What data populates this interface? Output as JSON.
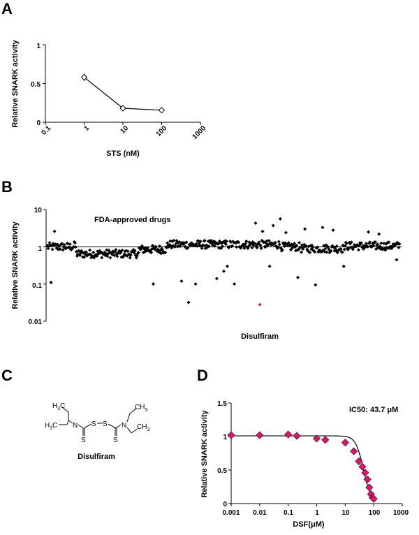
{
  "colors": {
    "axis": "#000000",
    "marker": "#000000",
    "highlight": "#e0156a",
    "nitrogen": "#1f2fa0",
    "sulfur": "#7a7a10",
    "bond": "#000000"
  },
  "chart_data": [
    {
      "panel": "A",
      "type": "line",
      "xscale": "log",
      "xlabel": "STS (nM)",
      "ylabel": "Relative SNARK activity",
      "xlim": [
        0.1,
        1000
      ],
      "ylim": [
        0,
        1
      ],
      "x_tick_labels": [
        "0.1",
        "1",
        "10",
        "100",
        "1000"
      ],
      "y_tick_labels": [
        "0",
        "0.5",
        "1"
      ],
      "series": [
        {
          "name": "STS",
          "x": [
            1,
            10,
            100
          ],
          "y": [
            0.58,
            0.18,
            0.155
          ],
          "yerr": [
            0.05,
            0.01,
            0.01
          ]
        }
      ]
    },
    {
      "panel": "B",
      "type": "scatter",
      "yscale": "log",
      "ylabel": "Relative SNARK activity",
      "ylim": [
        0.01,
        10
      ],
      "y_tick_labels": [
        "0.01",
        "0.1",
        "1",
        "10"
      ],
      "reference_line": 1,
      "annotation": "FDA-approved drugs",
      "n_points": 500,
      "outliers": [
        {
          "index": 5,
          "y": 0.11
        },
        {
          "index": 10,
          "y": 2.6
        },
        {
          "index": 38,
          "y": 1.35
        },
        {
          "index": 150,
          "y": 0.1
        },
        {
          "index": 190,
          "y": 0.12
        },
        {
          "index": 200,
          "y": 0.032
        },
        {
          "index": 210,
          "y": 0.1
        },
        {
          "index": 240,
          "y": 0.14
        },
        {
          "index": 250,
          "y": 0.22
        },
        {
          "index": 255,
          "y": 0.3
        },
        {
          "index": 265,
          "y": 0.1
        },
        {
          "index": 295,
          "y": 4.3
        },
        {
          "index": 305,
          "y": 2.6
        },
        {
          "index": 315,
          "y": 0.3
        },
        {
          "index": 320,
          "y": 3.7
        },
        {
          "index": 330,
          "y": 5.6
        },
        {
          "index": 338,
          "y": 2.4
        },
        {
          "index": 355,
          "y": 0.15
        },
        {
          "index": 365,
          "y": 3.0
        },
        {
          "index": 380,
          "y": 0.095
        },
        {
          "index": 390,
          "y": 3.3
        },
        {
          "index": 405,
          "y": 2.8
        },
        {
          "index": 420,
          "y": 0.3
        },
        {
          "index": 455,
          "y": 2.5
        },
        {
          "index": 470,
          "y": 2.2
        },
        {
          "index": 495,
          "y": 0.45
        }
      ],
      "highlight": {
        "label": "Disulfiram",
        "index": 301,
        "y": 0.028
      }
    },
    {
      "panel": "D",
      "type": "scatter",
      "xscale": "log",
      "xlabel": "DSF(μM)",
      "ylabel": "Relative SNARK activity",
      "xlim": [
        0.001,
        1000
      ],
      "ylim": [
        0,
        1.5
      ],
      "x_tick_labels": [
        "0.001",
        "0.01",
        "0.1",
        "1",
        "10",
        "100",
        "1000"
      ],
      "y_tick_labels": [
        "0",
        "0.5",
        "1",
        "1.5"
      ],
      "annotation": "IC50: 43.7 μM",
      "ic50": 43.7,
      "top": 1.01,
      "hill": 3.2,
      "points": [
        {
          "x": 0.001,
          "y": 1.02,
          "err": 0.03
        },
        {
          "x": 0.01,
          "y": 1.02,
          "err": 0.05
        },
        {
          "x": 0.1,
          "y": 1.03,
          "err": 0.04
        },
        {
          "x": 0.2,
          "y": 1.01,
          "err": 0.04
        },
        {
          "x": 1,
          "y": 0.97,
          "err": 0.02
        },
        {
          "x": 2,
          "y": 0.95,
          "err": 0.02
        },
        {
          "x": 10,
          "y": 0.91,
          "err": 0.04
        },
        {
          "x": 20,
          "y": 0.78,
          "err": 0.05
        },
        {
          "x": 30,
          "y": 0.63,
          "err": 0.05
        },
        {
          "x": 40,
          "y": 0.55,
          "err": 0.04
        },
        {
          "x": 50,
          "y": 0.46,
          "err": 0.05
        },
        {
          "x": 60,
          "y": 0.36,
          "err": 0.05
        },
        {
          "x": 70,
          "y": 0.24,
          "err": 0.05
        },
        {
          "x": 80,
          "y": 0.14,
          "err": 0.04
        },
        {
          "x": 90,
          "y": 0.09,
          "err": 0.03
        },
        {
          "x": 100,
          "y": 0.07,
          "err": 0.03
        }
      ]
    }
  ],
  "panels": {
    "a": "A",
    "b": "B",
    "c": "C",
    "d": "D"
  },
  "molecule": {
    "name": "Disulfiram",
    "left_top_group": "H",
    "left_top_sub": "3",
    "left_top_tail": "C",
    "left_bottom_group": "H",
    "left_bottom_sub": "3",
    "left_bottom_tail": "C",
    "right_top_group": "CH",
    "right_top_sub": "3",
    "right_bottom_group": "CH",
    "right_bottom_sub": "3",
    "n_left": "N",
    "n_right": "N",
    "s_thione_left": "S",
    "s_thione_right": "S",
    "s_bridge_left": "S",
    "s_bridge_right": "S"
  }
}
